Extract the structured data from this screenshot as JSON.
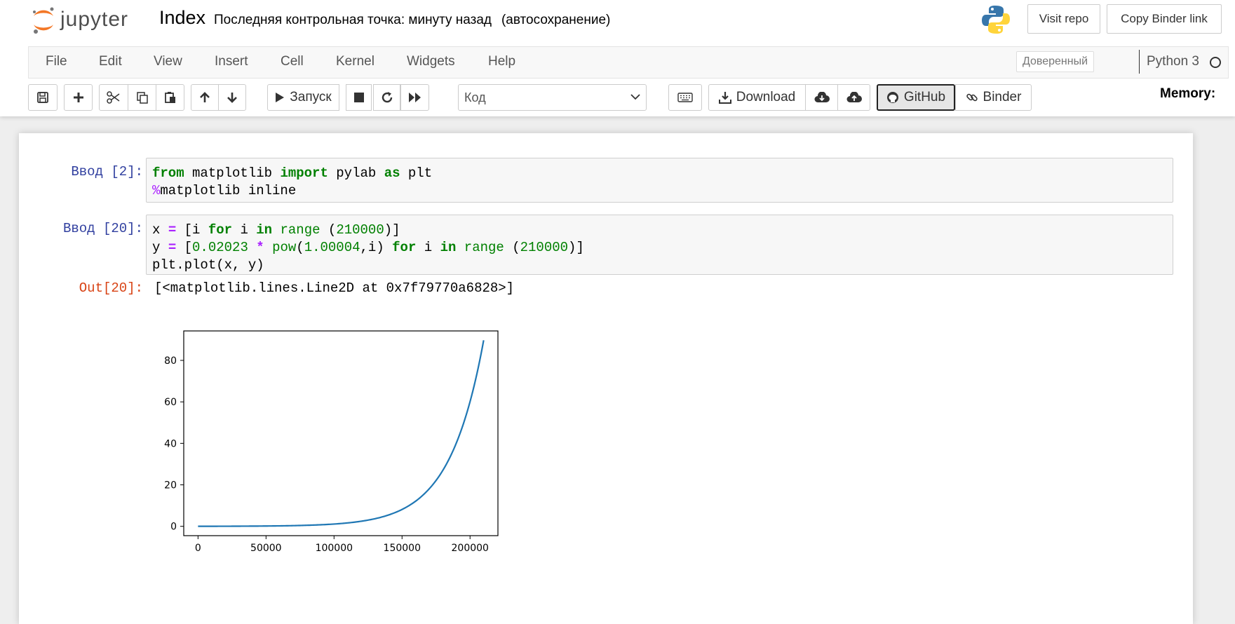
{
  "header": {
    "logo_text": "jupyter",
    "notebook_name": "Index",
    "checkpoint_text": "Последняя контрольная точка: минуту назад",
    "autosave_text": "(автосохранение)",
    "visit_repo_label": "Visit repo",
    "copy_binder_label": "Copy Binder link"
  },
  "menubar": {
    "items": [
      "File",
      "Edit",
      "View",
      "Insert",
      "Cell",
      "Kernel",
      "Widgets",
      "Help"
    ],
    "trusted_label": "Доверенный",
    "kernel_name": "Python 3"
  },
  "toolbar": {
    "run_label": "Запуск",
    "cell_type_value": "Код",
    "download_label": "Download",
    "github_label": "GitHub",
    "binder_label": "Binder",
    "memory_label": "Memory:"
  },
  "cells": [
    {
      "prompt": "Ввод [2]:",
      "lines": [
        [
          [
            "kw",
            "from"
          ],
          [
            "",
            " matplotlib "
          ],
          [
            "kw",
            "import"
          ],
          [
            "",
            " pylab "
          ],
          [
            "kw",
            "as"
          ],
          [
            "",
            " plt"
          ]
        ],
        [
          [
            "magic",
            "%"
          ],
          [
            "",
            "matplotlib inline"
          ]
        ]
      ]
    },
    {
      "prompt": "Ввод [20]:",
      "lines": [
        [
          [
            "",
            "x "
          ],
          [
            "op",
            "="
          ],
          [
            "",
            " [i "
          ],
          [
            "kw",
            "for"
          ],
          [
            "",
            " i "
          ],
          [
            "kw",
            "in"
          ],
          [
            "",
            " "
          ],
          [
            "bi",
            "range"
          ],
          [
            "",
            " ("
          ],
          [
            "num",
            "210000"
          ],
          [
            "",
            ")]"
          ]
        ],
        [
          [
            "",
            "y "
          ],
          [
            "op",
            "="
          ],
          [
            "",
            " ["
          ],
          [
            "num",
            "0.02023"
          ],
          [
            "",
            " "
          ],
          [
            "op",
            "*"
          ],
          [
            "",
            " "
          ],
          [
            "bi",
            "pow"
          ],
          [
            "",
            "("
          ],
          [
            "num",
            "1.00004"
          ],
          [
            "",
            ",i) "
          ],
          [
            "kw",
            "for"
          ],
          [
            "",
            " i "
          ],
          [
            "kw",
            "in"
          ],
          [
            "",
            " "
          ],
          [
            "bi",
            "range"
          ],
          [
            "",
            " ("
          ],
          [
            "num",
            "210000"
          ],
          [
            "",
            ")]"
          ]
        ],
        [
          [
            "",
            "plt.plot(x, y)"
          ]
        ]
      ]
    }
  ],
  "output": {
    "prompt": "Out[20]:",
    "text": "[<matplotlib.lines.Line2D at 0x7f79770a6828>]"
  },
  "chart_data": {
    "type": "line",
    "x": [
      0,
      10000,
      20000,
      30000,
      40000,
      50000,
      60000,
      70000,
      80000,
      90000,
      100000,
      110000,
      120000,
      130000,
      140000,
      150000,
      160000,
      170000,
      180000,
      190000,
      200000,
      210000
    ],
    "series": [
      {
        "values": [
          0.02,
          0.03,
          0.04,
          0.07,
          0.1,
          0.15,
          0.22,
          0.33,
          0.5,
          0.74,
          1.1,
          1.64,
          2.45,
          3.65,
          5.45,
          8.13,
          12.13,
          18.1,
          27.0,
          40.3,
          60.1,
          89.7
        ],
        "color": "#1f77b4"
      }
    ],
    "title": "",
    "xlabel": "",
    "ylabel": "",
    "xlim": [
      -10500,
      220500
    ],
    "ylim": [
      -4.5,
      94.2
    ],
    "xticks": [
      "0",
      "50000",
      "100000",
      "150000",
      "200000"
    ],
    "yticks": [
      "0",
      "20",
      "40",
      "60",
      "80"
    ],
    "grid": false,
    "legend": "none"
  }
}
